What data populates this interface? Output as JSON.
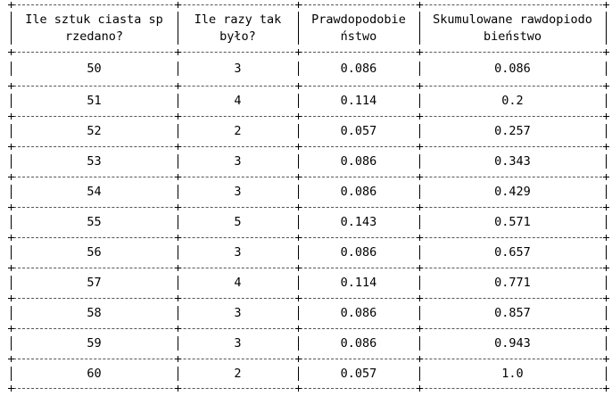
{
  "table": {
    "headers": [
      [
        "Ile sztuk ciasta sp",
        "rzedano?"
      ],
      [
        "Ile razy tak",
        "było?"
      ],
      [
        "Prawdopodobie",
        "ństwo"
      ],
      [
        "Skumulowane rawdopiodo",
        "bieństwo"
      ]
    ],
    "rows": [
      [
        "50",
        "3",
        "0.086",
        "0.086"
      ],
      [
        "51",
        "4",
        "0.114",
        "0.2"
      ],
      [
        "52",
        "2",
        "0.057",
        "0.257"
      ],
      [
        "53",
        "3",
        "0.086",
        "0.343"
      ],
      [
        "54",
        "3",
        "0.086",
        "0.429"
      ],
      [
        "55",
        "5",
        "0.143",
        "0.571"
      ],
      [
        "56",
        "3",
        "0.086",
        "0.657"
      ],
      [
        "57",
        "4",
        "0.114",
        "0.771"
      ],
      [
        "58",
        "3",
        "0.086",
        "0.857"
      ],
      [
        "59",
        "3",
        "0.086",
        "0.943"
      ],
      [
        "60",
        "2",
        "0.057",
        "1.0"
      ]
    ]
  }
}
